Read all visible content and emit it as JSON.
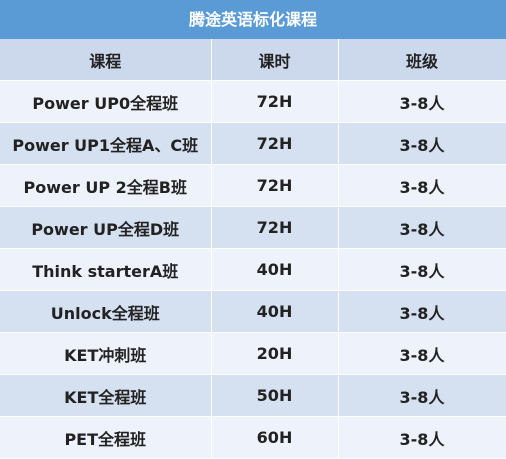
{
  "title": "腾途英语标化课程",
  "headers": [
    "课程",
    "课时",
    "班级"
  ],
  "rows": [
    [
      "Power UP0全程班",
      "72H",
      "3-8人"
    ],
    [
      "Power UP1全程A、C班",
      "72H",
      "3-8人"
    ],
    [
      "Power UP 2全程B班",
      "72H",
      "3-8人"
    ],
    [
      "Power UP全程D班",
      "72H",
      "3-8人"
    ],
    [
      "Think starterA班",
      "40H",
      "3-8人"
    ],
    [
      "Unlock全程班",
      "40H",
      "3-8人"
    ],
    [
      "KET冲刺班",
      "20H",
      "3-8人"
    ],
    [
      "KET全程班",
      "50H",
      "3-8人"
    ],
    [
      "PET全程班",
      "60H",
      "3-8人"
    ]
  ],
  "colors": {
    "title_bg": "#5b9bd5",
    "header_bg": "#ccd9ec",
    "row_light": "#eef2fa",
    "row_dark": "#d5e0f0"
  }
}
